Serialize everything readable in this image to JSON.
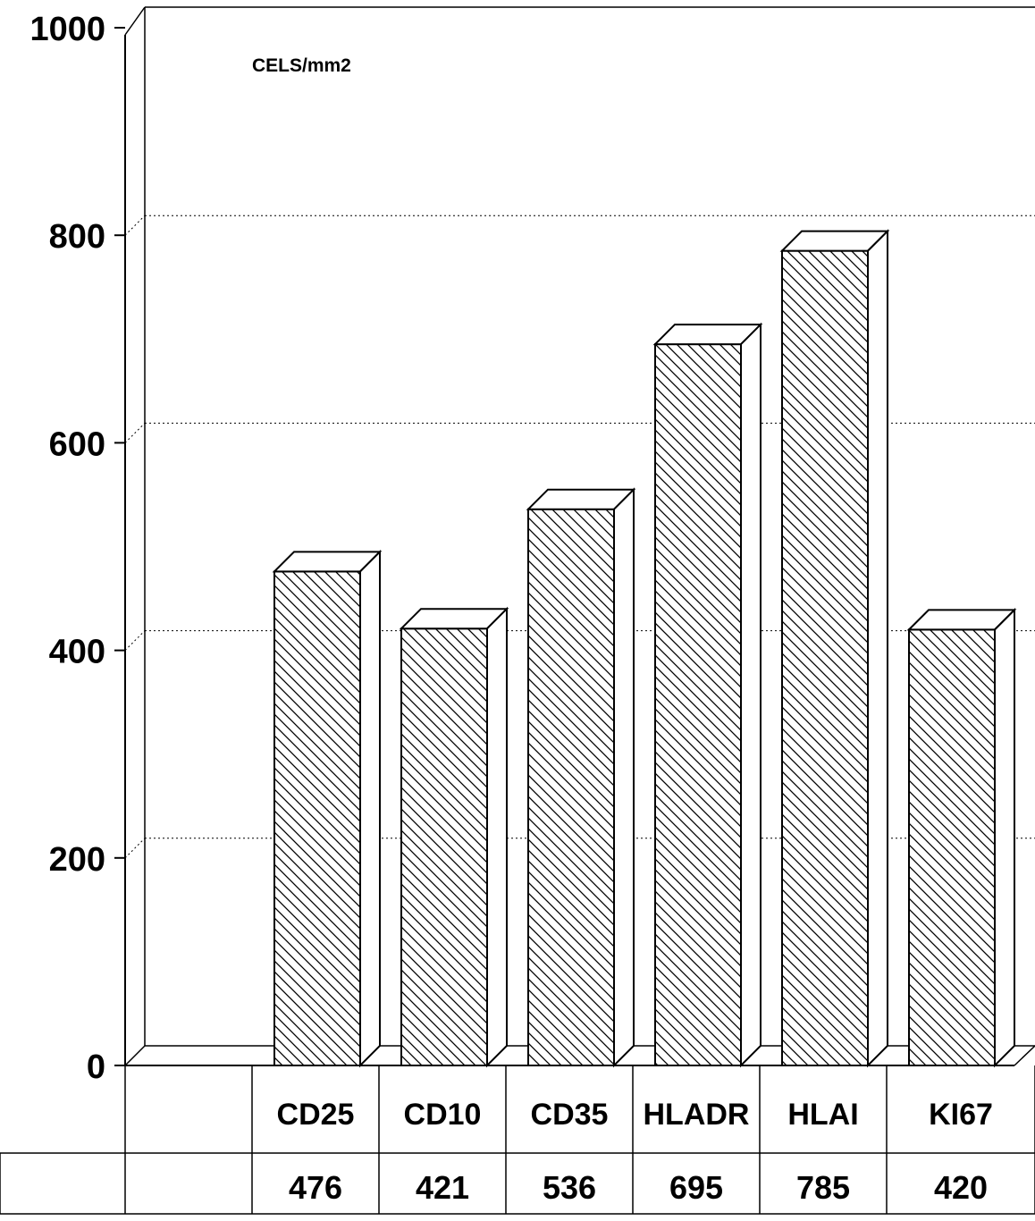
{
  "chart_data": {
    "type": "bar",
    "title": "",
    "unit_label": "CELS/mm2",
    "xlabel": "",
    "ylabel": "",
    "categories": [
      "CD25",
      "CD10",
      "CD35",
      "HLADR",
      "HLAI",
      "KI67"
    ],
    "values": [
      476,
      421,
      536,
      695,
      785,
      420
    ],
    "value_labels": [
      "476",
      "421",
      "536",
      "695",
      "785",
      "420"
    ],
    "ylim": [
      0,
      1000
    ],
    "yticks": [
      0,
      200,
      400,
      600,
      800,
      1000
    ],
    "ytick_labels": [
      "0",
      "200",
      "400",
      "600",
      "800",
      "1000"
    ],
    "grid": true,
    "style": "3d-hatched-bars",
    "colors": {
      "bar_fill": "#ffffff",
      "hatch": "#000000",
      "grid": "#000000",
      "background": "#ffffff"
    }
  }
}
